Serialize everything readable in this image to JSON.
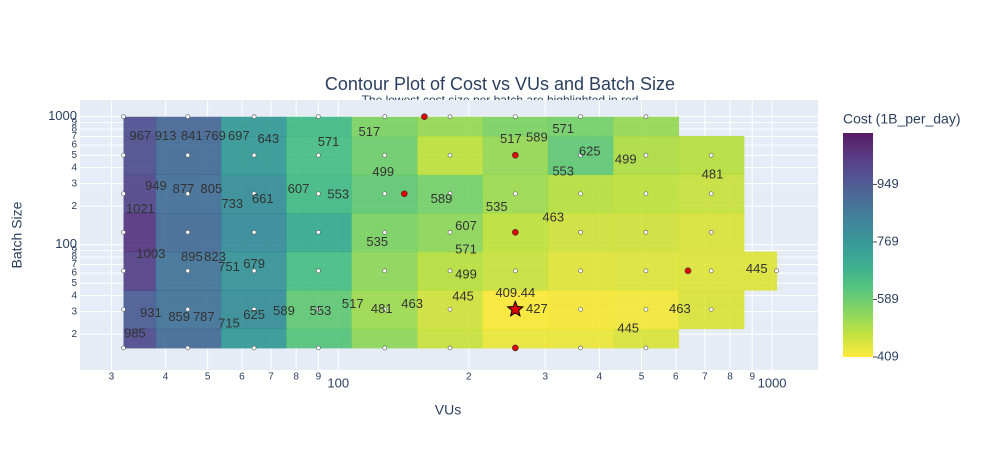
{
  "chart_data": {
    "type": "contour",
    "title": "Contour Plot of Cost vs VUs and Batch Size",
    "subtitle": "The lowest cost size per batch are highlighted in red",
    "x_label": "VUs",
    "y_label": "Batch Size",
    "colorbar_title": "Cost (1B_per_day)",
    "log_x": true,
    "log_y": true,
    "grid": true,
    "xlim": [
      25.4,
      1276
    ],
    "ylim": [
      10.5,
      1350
    ],
    "zlim": [
      409,
      1110
    ],
    "colorscale": "viridis_r",
    "x": [
      32,
      45,
      64,
      90,
      128,
      181,
      256,
      362,
      512,
      724,
      1024
    ],
    "y": [
      15.625,
      31.25,
      62.5,
      125,
      250,
      500,
      1000
    ],
    "z": [
      [
        985,
        900,
        760,
        620,
        540,
        470,
        430,
        430,
        450,
        null,
        null
      ],
      [
        940,
        880,
        790,
        600,
        520,
        460,
        410,
        415,
        420,
        450,
        null
      ],
      [
        1010,
        880,
        780,
        640,
        540,
        490,
        470,
        440,
        445,
        445,
        445
      ],
      [
        1040,
        900,
        800,
        700,
        560,
        540,
        480,
        460,
        460,
        450,
        null
      ],
      [
        1000,
        890,
        790,
        650,
        600,
        570,
        520,
        490,
        480,
        470,
        null
      ],
      [
        975,
        900,
        760,
        640,
        580,
        480,
        530,
        600,
        500,
        490,
        null
      ],
      [
        970,
        910,
        760,
        650,
        560,
        530,
        560,
        570,
        530,
        null,
        null
      ]
    ],
    "xticks": [
      {
        "value": 30,
        "label": "3"
      },
      {
        "value": 40,
        "label": "4"
      },
      {
        "value": 50,
        "label": "5"
      },
      {
        "value": 60,
        "label": "6"
      },
      {
        "value": 70,
        "label": "7"
      },
      {
        "value": 80,
        "label": "8"
      },
      {
        "value": 90,
        "label": "9"
      },
      100,
      {
        "value": 200,
        "label": "2"
      },
      {
        "value": 300,
        "label": "3"
      },
      {
        "value": 400,
        "label": "4"
      },
      {
        "value": 500,
        "label": "5"
      },
      {
        "value": 600,
        "label": "6"
      },
      {
        "value": 700,
        "label": "7"
      },
      {
        "value": 800,
        "label": "8"
      },
      {
        "value": 900,
        "label": "9"
      },
      1000
    ],
    "yticks": [
      {
        "value": 20,
        "label": "2"
      },
      {
        "value": 30,
        "label": "3"
      },
      {
        "value": 40,
        "label": "4"
      },
      {
        "value": 50,
        "label": "5"
      },
      {
        "value": 60,
        "label": "6"
      },
      {
        "value": 70,
        "label": "7"
      },
      {
        "value": 80,
        "label": "8"
      },
      {
        "value": 90,
        "label": "9"
      },
      100,
      {
        "value": 200,
        "label": "2"
      },
      {
        "value": 300,
        "label": "3"
      },
      {
        "value": 400,
        "label": "4"
      },
      {
        "value": 500,
        "label": "5"
      },
      {
        "value": 600,
        "label": "6"
      },
      {
        "value": 700,
        "label": "7"
      },
      {
        "value": 800,
        "label": "8"
      },
      {
        "value": 900,
        "label": "9"
      },
      1000
    ],
    "colorbar_ticks": [
      409,
      589,
      769,
      949
    ],
    "highlighted": {
      "color": "#e00000",
      "x": [
        158,
        256,
        142,
        256,
        640,
        256
      ],
      "y": [
        1000,
        500,
        250,
        125,
        62.5,
        15.625
      ]
    },
    "best": {
      "x": 256,
      "y": 31.25,
      "cost": 409.44
    },
    "contour_labels": [
      {
        "x": 35,
        "y": 698,
        "value": 967
      },
      {
        "x": 40,
        "y": 698,
        "value": 913
      },
      {
        "x": 46,
        "y": 698,
        "value": 841
      },
      {
        "x": 52,
        "y": 698,
        "value": 769
      },
      {
        "x": 59,
        "y": 698,
        "value": 697
      },
      {
        "x": 69,
        "y": 660,
        "value": 643
      },
      {
        "x": 95,
        "y": 630,
        "value": 571
      },
      {
        "x": 118,
        "y": 750,
        "value": 517
      },
      {
        "x": 250,
        "y": 660,
        "value": 517
      },
      {
        "x": 287,
        "y": 680,
        "value": 589
      },
      {
        "x": 330,
        "y": 790,
        "value": 571
      },
      {
        "x": 380,
        "y": 530,
        "value": 625
      },
      {
        "x": 460,
        "y": 460,
        "value": 499
      },
      {
        "x": 330,
        "y": 370,
        "value": 553
      },
      {
        "x": 729,
        "y": 350,
        "value": 481
      },
      {
        "x": 38,
        "y": 285,
        "value": 949
      },
      {
        "x": 44,
        "y": 270,
        "value": 877
      },
      {
        "x": 51,
        "y": 270,
        "value": 805
      },
      {
        "x": 57,
        "y": 205,
        "value": 733
      },
      {
        "x": 67,
        "y": 225,
        "value": 661
      },
      {
        "x": 81,
        "y": 270,
        "value": 607
      },
      {
        "x": 100,
        "y": 245,
        "value": 553
      },
      {
        "x": 127,
        "y": 365,
        "value": 499
      },
      {
        "x": 173,
        "y": 225,
        "value": 589
      },
      {
        "x": 197,
        "y": 138,
        "value": 607
      },
      {
        "x": 232,
        "y": 195,
        "value": 535
      },
      {
        "x": 313,
        "y": 162,
        "value": 463
      },
      {
        "x": 123,
        "y": 104,
        "value": 535
      },
      {
        "x": 197,
        "y": 91,
        "value": 571
      },
      {
        "x": 197,
        "y": 58,
        "value": 499
      },
      {
        "x": 35,
        "y": 188,
        "value": 1021
      },
      {
        "x": 37,
        "y": 84,
        "value": 1003
      },
      {
        "x": 46,
        "y": 79,
        "value": 895
      },
      {
        "x": 52,
        "y": 79,
        "value": 823
      },
      {
        "x": 56,
        "y": 66,
        "value": 751
      },
      {
        "x": 64,
        "y": 70,
        "value": 679
      },
      {
        "x": 922,
        "y": 64,
        "value": 445
      },
      {
        "x": 108,
        "y": 34,
        "value": 517
      },
      {
        "x": 126,
        "y": 31,
        "value": 481
      },
      {
        "x": 148,
        "y": 34,
        "value": 463
      },
      {
        "x": 194,
        "y": 39,
        "value": 445
      },
      {
        "x": 91,
        "y": 30,
        "value": 553
      },
      {
        "x": 75,
        "y": 30,
        "value": 589
      },
      {
        "x": 64,
        "y": 28,
        "value": 625
      },
      {
        "x": 56,
        "y": 24,
        "value": 715
      },
      {
        "x": 49,
        "y": 27,
        "value": 787
      },
      {
        "x": 43,
        "y": 27,
        "value": 859
      },
      {
        "x": 37,
        "y": 29,
        "value": 931
      },
      {
        "x": 34,
        "y": 20,
        "value": 985
      },
      {
        "x": 287,
        "y": 31,
        "value": 427
      },
      {
        "x": 466,
        "y": 22,
        "value": 445
      },
      {
        "x": 613,
        "y": 31,
        "value": 463
      }
    ]
  }
}
